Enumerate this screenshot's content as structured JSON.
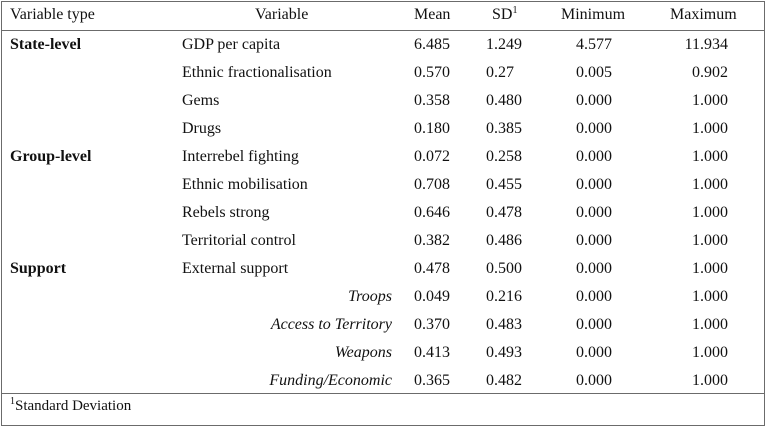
{
  "headers": {
    "variable_type": "Variable type",
    "variable": "Variable",
    "mean": "Mean",
    "sd": "SD",
    "sd_sup": "1",
    "minimum": "Minimum",
    "maximum": "Maximum"
  },
  "rows": [
    {
      "group": "State-level",
      "variable": "GDP per capita",
      "italic": false,
      "mean": "6.485",
      "sd": "1.249",
      "min": "4.577",
      "max": "11.934"
    },
    {
      "group": "",
      "variable": "Ethnic fractionalisation",
      "italic": false,
      "mean": "0.570",
      "sd": "0.27",
      "min": "0.005",
      "max": "0.902"
    },
    {
      "group": "",
      "variable": "Gems",
      "italic": false,
      "mean": "0.358",
      "sd": "0.480",
      "min": "0.000",
      "max": "1.000"
    },
    {
      "group": "",
      "variable": "Drugs",
      "italic": false,
      "mean": "0.180",
      "sd": "0.385",
      "min": "0.000",
      "max": "1.000"
    },
    {
      "group": "Group-level",
      "variable": "Interrebel fighting",
      "italic": false,
      "mean": "0.072",
      "sd": "0.258",
      "min": "0.000",
      "max": "1.000"
    },
    {
      "group": "",
      "variable": "Ethnic mobilisation",
      "italic": false,
      "mean": "0.708",
      "sd": "0.455",
      "min": "0.000",
      "max": "1.000"
    },
    {
      "group": "",
      "variable": "Rebels strong",
      "italic": false,
      "mean": "0.646",
      "sd": "0.478",
      "min": "0.000",
      "max": "1.000"
    },
    {
      "group": "",
      "variable": "Territorial control",
      "italic": false,
      "mean": "0.382",
      "sd": "0.486",
      "min": "0.000",
      "max": "1.000"
    },
    {
      "group": "Support",
      "variable": "External support",
      "italic": false,
      "mean": "0.478",
      "sd": "0.500",
      "min": "0.000",
      "max": "1.000"
    },
    {
      "group": "",
      "variable": "Troops",
      "italic": true,
      "mean": "0.049",
      "sd": "0.216",
      "min": "0.000",
      "max": "1.000"
    },
    {
      "group": "",
      "variable": "Access to Territory",
      "italic": true,
      "mean": "0.370",
      "sd": "0.483",
      "min": "0.000",
      "max": "1.000"
    },
    {
      "group": "",
      "variable": "Weapons",
      "italic": true,
      "mean": "0.413",
      "sd": "0.493",
      "min": "0.000",
      "max": "1.000"
    },
    {
      "group": "",
      "variable": "Funding/Economic",
      "italic": true,
      "mean": "0.365",
      "sd": "0.482",
      "min": "0.000",
      "max": "1.000"
    }
  ],
  "footnote": {
    "sup": "1",
    "text": "Standard Deviation"
  }
}
